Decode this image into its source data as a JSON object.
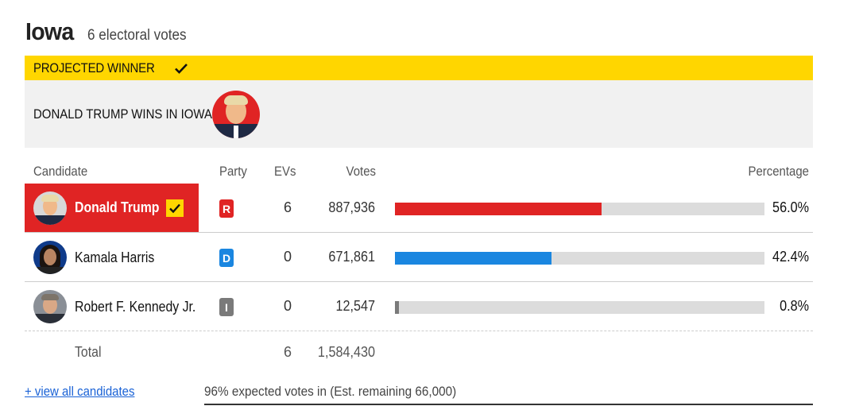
{
  "header": {
    "state": "Iowa",
    "electoral_votes_label": "6 electoral votes"
  },
  "projected": {
    "label": "PROJECTED WINNER",
    "message": "DONALD TRUMP WINS IN IOWA"
  },
  "columns": {
    "candidate": "Candidate",
    "party": "Party",
    "evs": "EVs",
    "votes": "Votes",
    "percentage": "Percentage"
  },
  "candidates": [
    {
      "name": "Donald Trump",
      "party": "R",
      "party_color": "#e02424",
      "evs": "6",
      "votes": "887,936",
      "percent": "56.0%",
      "share": 56.0,
      "bar_color": "#e02424",
      "winner": true
    },
    {
      "name": "Kamala Harris",
      "party": "D",
      "party_color": "#1a86e0",
      "evs": "0",
      "votes": "671,861",
      "percent": "42.4%",
      "share": 42.4,
      "bar_color": "#1a86e0",
      "winner": false
    },
    {
      "name": "Robert F. Kennedy Jr.",
      "party": "I",
      "party_color": "#7a7a7a",
      "evs": "0",
      "votes": "12,547",
      "percent": "0.8%",
      "share": 0.8,
      "bar_color": "#7a7a7a",
      "winner": false
    }
  ],
  "total": {
    "label": "Total",
    "evs": "6",
    "votes": "1,584,430"
  },
  "footer": {
    "view_all": "+ view all candidates",
    "expected": "96% expected votes in (Est. remaining 66,000)"
  },
  "colors": {
    "winner_banner": "#FFD600",
    "republican": "#e02424",
    "democrat": "#1a86e0",
    "independent": "#7a7a7a"
  }
}
